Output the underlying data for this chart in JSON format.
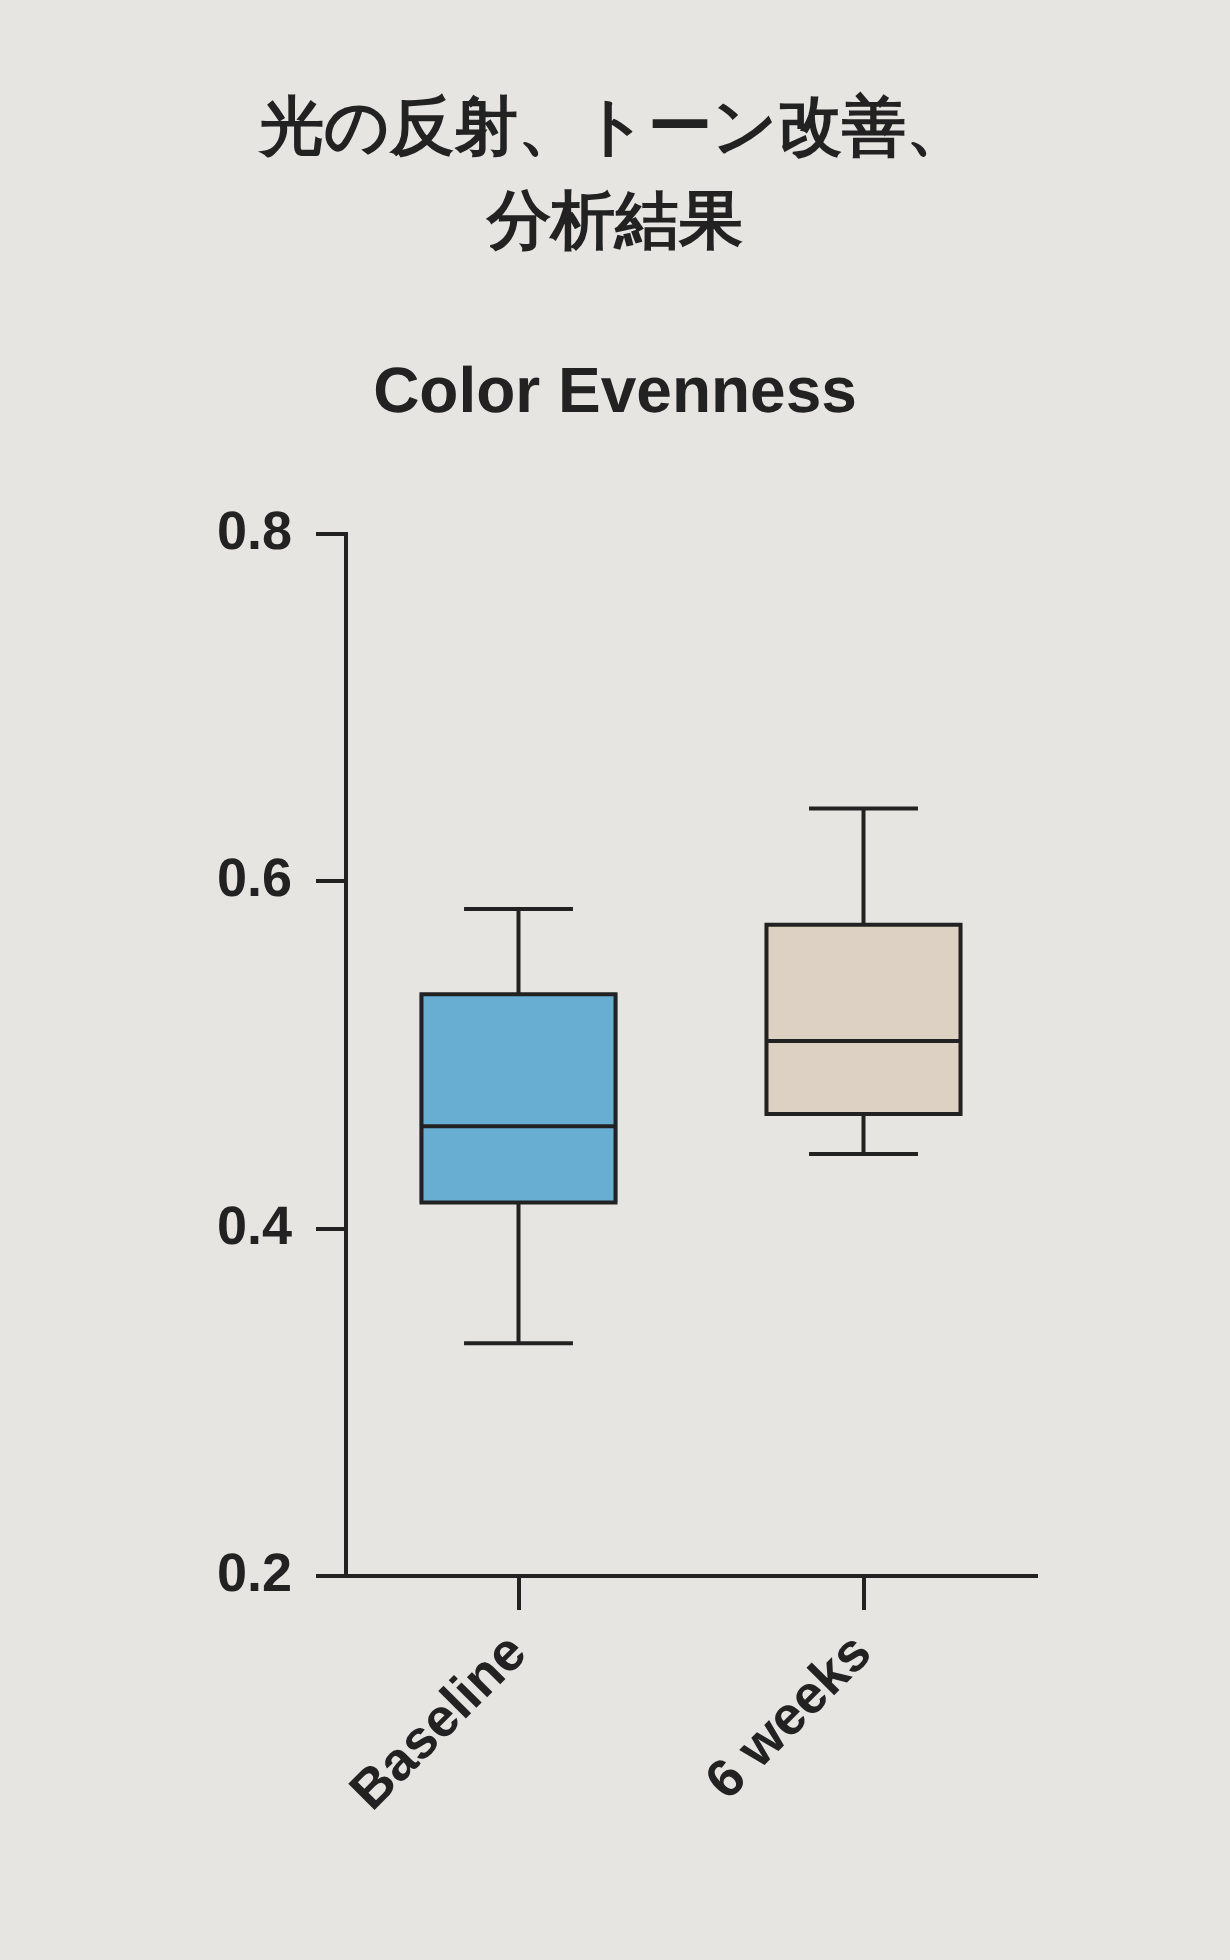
{
  "chart_data": {
    "type": "box",
    "title": "光の反射、トーン改善、分析結果",
    "subtitle": "Color Evenness",
    "categories": [
      "Baseline",
      "6 weeks"
    ],
    "boxes": [
      {
        "low": 0.334,
        "q1": 0.415,
        "median": 0.459,
        "q3": 0.535,
        "high": 0.584
      },
      {
        "low": 0.443,
        "q1": 0.466,
        "median": 0.508,
        "q3": 0.575,
        "high": 0.642
      }
    ],
    "colors": [
      "#68aed3",
      "#dcd1c3"
    ],
    "ylim": [
      0.2,
      0.8
    ],
    "yticks": [
      0.2,
      0.4,
      0.6,
      0.8
    ]
  }
}
